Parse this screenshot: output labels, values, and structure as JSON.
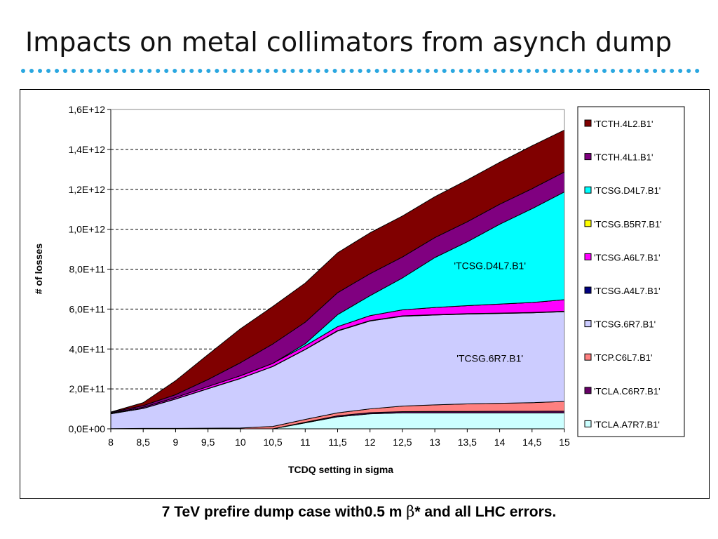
{
  "slide": {
    "title": "Impacts on metal collimators from asynch dump",
    "caption_pre": "7 TeV prefire dump case with0.5 m ",
    "caption_beta": "β",
    "caption_post": "* and all LHC errors."
  },
  "colors": {
    "divider": "#2aa7e0"
  },
  "chart_data": {
    "type": "area",
    "stacked": true,
    "xlabel": "TCDQ setting  in sigma",
    "ylabel": "# of losses",
    "x": [
      8,
      8.5,
      9,
      9.5,
      10,
      10.5,
      11,
      11.5,
      12,
      12.5,
      13,
      13.5,
      14,
      14.5,
      15
    ],
    "x_tick_labels": [
      "8",
      "8,5",
      "9",
      "9,5",
      "10",
      "10,5",
      "11",
      "11,5",
      "12",
      "12,5",
      "13",
      "13,5",
      "14",
      "14,5",
      "15"
    ],
    "ylim": [
      0,
      1600000000000.0
    ],
    "y_ticks": [
      0,
      200000000000.0,
      400000000000.0,
      600000000000.0,
      800000000000.0,
      1000000000000.0,
      1200000000000.0,
      1400000000000.0,
      1600000000000.0
    ],
    "y_tick_labels": [
      "0,0E+00",
      "2,0E+11",
      "4,0E+11",
      "6,0E+11",
      "8,0E+11",
      "1,0E+12",
      "1,2E+12",
      "1,4E+12",
      "1,6E+12"
    ],
    "grid": {
      "y": true,
      "style": "dashed"
    },
    "legend_position": "right",
    "series": [
      {
        "name": "'TCLA.A7R7.B1'",
        "color": "#ccffff",
        "values": [
          0,
          0,
          0,
          0,
          0,
          0,
          30000000000.0,
          60000000000.0,
          75000000000.0,
          80000000000.0,
          80000000000.0,
          80000000000.0,
          80000000000.0,
          80000000000.0,
          80000000000.0
        ]
      },
      {
        "name": "'TCLA.C6R7.B1'",
        "color": "#660066",
        "values": [
          0,
          0,
          0,
          0,
          0,
          0,
          3000000000.0,
          5000000000.0,
          6000000000.0,
          6000000000.0,
          7000000000.0,
          7000000000.0,
          8000000000.0,
          8000000000.0,
          9000000000.0
        ]
      },
      {
        "name": "'TCP.C6L7.B1'",
        "color": "#ff8080",
        "values": [
          1000000000.0,
          2000000000.0,
          2000000000.0,
          3000000000.0,
          4000000000.0,
          12000000000.0,
          14000000000.0,
          15000000000.0,
          19000000000.0,
          28000000000.0,
          33000000000.0,
          38000000000.0,
          40000000000.0,
          43000000000.0,
          48000000000.0
        ]
      },
      {
        "name": "'TCSG.6R7.B1'",
        "color": "#ccccff",
        "values": [
          74000000000.0,
          100000000000.0,
          147000000000.0,
          198000000000.0,
          248000000000.0,
          300000000000.0,
          350000000000.0,
          410000000000.0,
          440000000000.0,
          450000000000.0,
          450000000000.0,
          450000000000.0,
          450000000000.0,
          450000000000.0,
          450000000000.0
        ]
      },
      {
        "name": "'TCSG.A4L7.B1'",
        "color": "#000080",
        "values": [
          1000000000.0,
          1000000000.0,
          1000000000.0,
          1000000000.0,
          1000000000.0,
          1000000000.0,
          1000000000.0,
          2000000000.0,
          2000000000.0,
          2000000000.0,
          2000000000.0,
          2000000000.0,
          2000000000.0,
          2000000000.0,
          2000000000.0
        ]
      },
      {
        "name": "'TCSG.A6L7.B1'",
        "color": "#ff00ff",
        "values": [
          3000000000.0,
          5000000000.0,
          7000000000.0,
          10000000000.0,
          13000000000.0,
          15000000000.0,
          18000000000.0,
          20000000000.0,
          25000000000.0,
          30000000000.0,
          36000000000.0,
          40000000000.0,
          45000000000.0,
          50000000000.0,
          58000000000.0
        ]
      },
      {
        "name": "'TCSG.B5R7.B1'",
        "color": "#ffff00",
        "values": [
          0,
          0,
          0,
          0,
          0,
          0,
          0,
          0,
          0,
          0,
          0,
          0,
          0,
          0,
          0
        ]
      },
      {
        "name": "'TCSG.D4L7.B1'",
        "color": "#00ffff",
        "values": [
          0,
          0,
          0,
          0,
          0,
          0,
          10000000000.0,
          60000000000.0,
          100000000000.0,
          160000000000.0,
          250000000000.0,
          320000000000.0,
          400000000000.0,
          470000000000.0,
          540000000000.0
        ]
      },
      {
        "name": "'TCTH.4L1.B1'",
        "color": "#800080",
        "values": [
          4000000000.0,
          8000000000.0,
          14000000000.0,
          35000000000.0,
          65000000000.0,
          97000000000.0,
          108000000000.0,
          110000000000.0,
          110000000000.0,
          105000000000.0,
          100000000000.0,
          100000000000.0,
          100000000000.0,
          100000000000.0,
          100000000000.0
        ]
      },
      {
        "name": "'TCTH.4L2.B1'",
        "color": "#800000",
        "values": [
          1000000000.0,
          15000000000.0,
          70000000000.0,
          125000000000.0,
          170000000000.0,
          188000000000.0,
          196000000000.0,
          200000000000.0,
          205000000000.0,
          205000000000.0,
          205000000000.0,
          210000000000.0,
          210000000000.0,
          215000000000.0,
          210000000000.0
        ]
      }
    ],
    "annotations": [
      {
        "text": "'TCSG.D4L7.B1'",
        "x": 13.85,
        "y": 800000000000.0
      },
      {
        "text": "'TCSG.6R7.B1'",
        "x": 13.85,
        "y": 335000000000.0
      }
    ]
  }
}
